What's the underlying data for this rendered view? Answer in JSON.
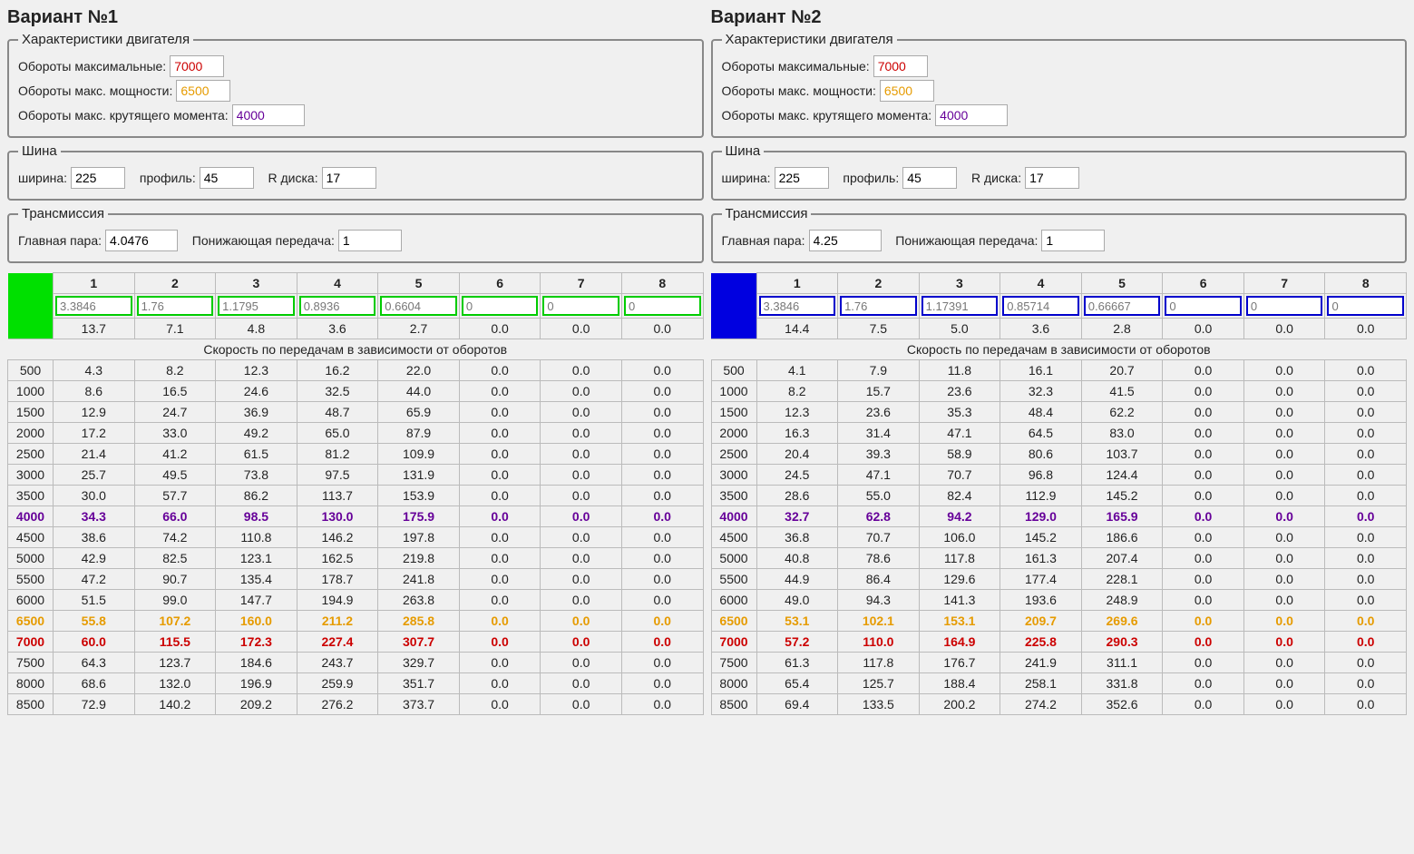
{
  "labels": {
    "engine_legend": "Характеристики двигателя",
    "rpm_max": "Обороты максимальные:",
    "rpm_power": "Обороты макс. мощности:",
    "rpm_torque": "Обороты макс. крутящего момента:",
    "tire_legend": "Шина",
    "tire_width": "ширина:",
    "tire_profile": "профиль:",
    "tire_rim": "R диска:",
    "trans_legend": "Трансмиссия",
    "final_drive": "Главная пара:",
    "low_gear": "Понижающая передача:",
    "subheader": "Скорость по передачам в зависимости от оборотов"
  },
  "variants": [
    {
      "title": "Вариант №1",
      "accent": "green",
      "engine": {
        "rpm_max": "7000",
        "rpm_power": "6500",
        "rpm_torque": "4000"
      },
      "tire": {
        "width": "225",
        "profile": "45",
        "rim": "17"
      },
      "trans": {
        "final": "4.0476",
        "low": "1"
      },
      "gear_headers": [
        "1",
        "2",
        "3",
        "4",
        "5",
        "6",
        "7",
        "8"
      ],
      "ratios": [
        "3.3846",
        "1.76",
        "1.1795",
        "0.8936",
        "0.6604",
        "0",
        "0",
        "0"
      ],
      "per1000": [
        "13.7",
        "7.1",
        "4.8",
        "3.6",
        "2.7",
        "0.0",
        "0.0",
        "0.0"
      ],
      "rows": [
        {
          "rpm": "500",
          "v": [
            "4.3",
            "8.2",
            "12.3",
            "16.2",
            "22.0",
            "0.0",
            "0.0",
            "0.0"
          ]
        },
        {
          "rpm": "1000",
          "v": [
            "8.6",
            "16.5",
            "24.6",
            "32.5",
            "44.0",
            "0.0",
            "0.0",
            "0.0"
          ]
        },
        {
          "rpm": "1500",
          "v": [
            "12.9",
            "24.7",
            "36.9",
            "48.7",
            "65.9",
            "0.0",
            "0.0",
            "0.0"
          ]
        },
        {
          "rpm": "2000",
          "v": [
            "17.2",
            "33.0",
            "49.2",
            "65.0",
            "87.9",
            "0.0",
            "0.0",
            "0.0"
          ]
        },
        {
          "rpm": "2500",
          "v": [
            "21.4",
            "41.2",
            "61.5",
            "81.2",
            "109.9",
            "0.0",
            "0.0",
            "0.0"
          ]
        },
        {
          "rpm": "3000",
          "v": [
            "25.7",
            "49.5",
            "73.8",
            "97.5",
            "131.9",
            "0.0",
            "0.0",
            "0.0"
          ]
        },
        {
          "rpm": "3500",
          "v": [
            "30.0",
            "57.7",
            "86.2",
            "113.7",
            "153.9",
            "0.0",
            "0.0",
            "0.0"
          ]
        },
        {
          "rpm": "4000",
          "v": [
            "34.3",
            "66.0",
            "98.5",
            "130.0",
            "175.9",
            "0.0",
            "0.0",
            "0.0"
          ],
          "hl": "purple"
        },
        {
          "rpm": "4500",
          "v": [
            "38.6",
            "74.2",
            "110.8",
            "146.2",
            "197.8",
            "0.0",
            "0.0",
            "0.0"
          ]
        },
        {
          "rpm": "5000",
          "v": [
            "42.9",
            "82.5",
            "123.1",
            "162.5",
            "219.8",
            "0.0",
            "0.0",
            "0.0"
          ]
        },
        {
          "rpm": "5500",
          "v": [
            "47.2",
            "90.7",
            "135.4",
            "178.7",
            "241.8",
            "0.0",
            "0.0",
            "0.0"
          ]
        },
        {
          "rpm": "6000",
          "v": [
            "51.5",
            "99.0",
            "147.7",
            "194.9",
            "263.8",
            "0.0",
            "0.0",
            "0.0"
          ]
        },
        {
          "rpm": "6500",
          "v": [
            "55.8",
            "107.2",
            "160.0",
            "211.2",
            "285.8",
            "0.0",
            "0.0",
            "0.0"
          ],
          "hl": "orange"
        },
        {
          "rpm": "7000",
          "v": [
            "60.0",
            "115.5",
            "172.3",
            "227.4",
            "307.7",
            "0.0",
            "0.0",
            "0.0"
          ],
          "hl": "red"
        },
        {
          "rpm": "7500",
          "v": [
            "64.3",
            "123.7",
            "184.6",
            "243.7",
            "329.7",
            "0.0",
            "0.0",
            "0.0"
          ]
        },
        {
          "rpm": "8000",
          "v": [
            "68.6",
            "132.0",
            "196.9",
            "259.9",
            "351.7",
            "0.0",
            "0.0",
            "0.0"
          ]
        },
        {
          "rpm": "8500",
          "v": [
            "72.9",
            "140.2",
            "209.2",
            "276.2",
            "373.7",
            "0.0",
            "0.0",
            "0.0"
          ]
        }
      ]
    },
    {
      "title": "Вариант №2",
      "accent": "blue",
      "engine": {
        "rpm_max": "7000",
        "rpm_power": "6500",
        "rpm_torque": "4000"
      },
      "tire": {
        "width": "225",
        "profile": "45",
        "rim": "17"
      },
      "trans": {
        "final": "4.25",
        "low": "1"
      },
      "gear_headers": [
        "1",
        "2",
        "3",
        "4",
        "5",
        "6",
        "7",
        "8"
      ],
      "ratios": [
        "3.3846",
        "1.76",
        "1.17391",
        "0.85714",
        "0.66667",
        "0",
        "0",
        "0"
      ],
      "per1000": [
        "14.4",
        "7.5",
        "5.0",
        "3.6",
        "2.8",
        "0.0",
        "0.0",
        "0.0"
      ],
      "rows": [
        {
          "rpm": "500",
          "v": [
            "4.1",
            "7.9",
            "11.8",
            "16.1",
            "20.7",
            "0.0",
            "0.0",
            "0.0"
          ]
        },
        {
          "rpm": "1000",
          "v": [
            "8.2",
            "15.7",
            "23.6",
            "32.3",
            "41.5",
            "0.0",
            "0.0",
            "0.0"
          ]
        },
        {
          "rpm": "1500",
          "v": [
            "12.3",
            "23.6",
            "35.3",
            "48.4",
            "62.2",
            "0.0",
            "0.0",
            "0.0"
          ]
        },
        {
          "rpm": "2000",
          "v": [
            "16.3",
            "31.4",
            "47.1",
            "64.5",
            "83.0",
            "0.0",
            "0.0",
            "0.0"
          ]
        },
        {
          "rpm": "2500",
          "v": [
            "20.4",
            "39.3",
            "58.9",
            "80.6",
            "103.7",
            "0.0",
            "0.0",
            "0.0"
          ]
        },
        {
          "rpm": "3000",
          "v": [
            "24.5",
            "47.1",
            "70.7",
            "96.8",
            "124.4",
            "0.0",
            "0.0",
            "0.0"
          ]
        },
        {
          "rpm": "3500",
          "v": [
            "28.6",
            "55.0",
            "82.4",
            "112.9",
            "145.2",
            "0.0",
            "0.0",
            "0.0"
          ]
        },
        {
          "rpm": "4000",
          "v": [
            "32.7",
            "62.8",
            "94.2",
            "129.0",
            "165.9",
            "0.0",
            "0.0",
            "0.0"
          ],
          "hl": "purple"
        },
        {
          "rpm": "4500",
          "v": [
            "36.8",
            "70.7",
            "106.0",
            "145.2",
            "186.6",
            "0.0",
            "0.0",
            "0.0"
          ]
        },
        {
          "rpm": "5000",
          "v": [
            "40.8",
            "78.6",
            "117.8",
            "161.3",
            "207.4",
            "0.0",
            "0.0",
            "0.0"
          ]
        },
        {
          "rpm": "5500",
          "v": [
            "44.9",
            "86.4",
            "129.6",
            "177.4",
            "228.1",
            "0.0",
            "0.0",
            "0.0"
          ]
        },
        {
          "rpm": "6000",
          "v": [
            "49.0",
            "94.3",
            "141.3",
            "193.6",
            "248.9",
            "0.0",
            "0.0",
            "0.0"
          ]
        },
        {
          "rpm": "6500",
          "v": [
            "53.1",
            "102.1",
            "153.1",
            "209.7",
            "269.6",
            "0.0",
            "0.0",
            "0.0"
          ],
          "hl": "orange"
        },
        {
          "rpm": "7000",
          "v": [
            "57.2",
            "110.0",
            "164.9",
            "225.8",
            "290.3",
            "0.0",
            "0.0",
            "0.0"
          ],
          "hl": "red"
        },
        {
          "rpm": "7500",
          "v": [
            "61.3",
            "117.8",
            "176.7",
            "241.9",
            "311.1",
            "0.0",
            "0.0",
            "0.0"
          ]
        },
        {
          "rpm": "8000",
          "v": [
            "65.4",
            "125.7",
            "188.4",
            "258.1",
            "331.8",
            "0.0",
            "0.0",
            "0.0"
          ]
        },
        {
          "rpm": "8500",
          "v": [
            "69.4",
            "133.5",
            "200.2",
            "274.2",
            "352.6",
            "0.0",
            "0.0",
            "0.0"
          ]
        }
      ]
    }
  ]
}
